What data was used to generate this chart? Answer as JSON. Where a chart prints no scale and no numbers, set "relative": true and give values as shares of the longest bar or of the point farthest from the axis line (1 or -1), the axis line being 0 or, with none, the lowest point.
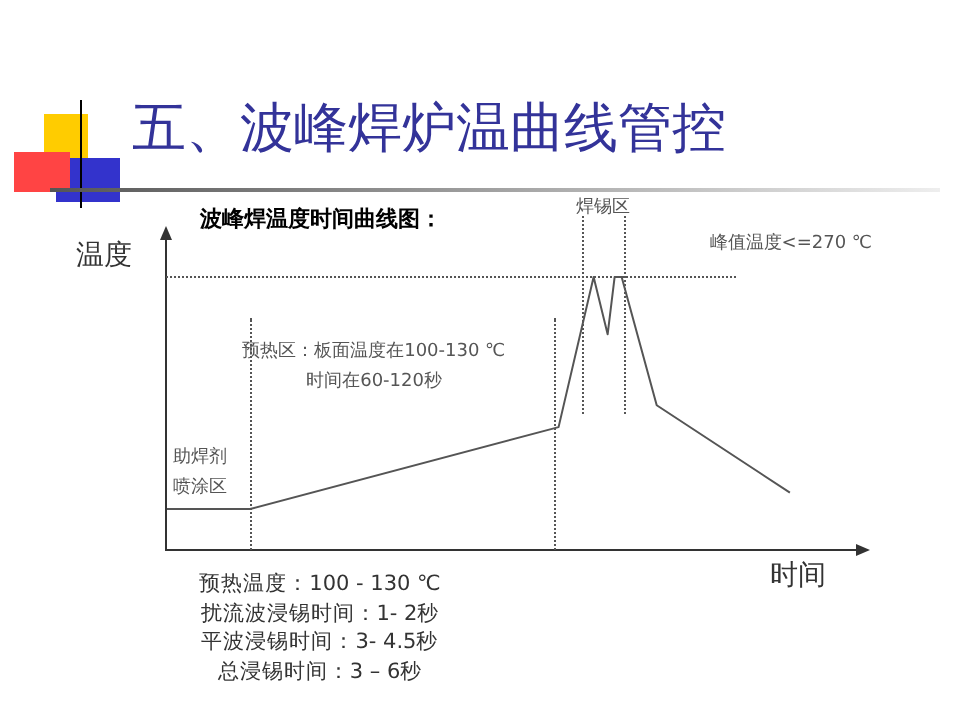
{
  "chart_data": {
    "type": "line",
    "title": "五、波峰焊炉温曲线管控",
    "subtitle": "波峰焊温度时间曲线图：",
    "xlabel": "时间",
    "ylabel": "温度",
    "relative": true,
    "tick_labels": false,
    "categories": [
      null,
      null,
      null,
      null,
      null,
      null,
      null,
      null,
      null,
      null,
      null,
      null,
      null,
      null,
      null,
      null,
      null,
      null,
      null,
      null,
      null,
      null,
      null,
      null,
      null,
      null,
      null,
      null,
      null,
      null,
      null,
      null,
      null,
      null,
      null,
      null,
      null,
      null,
      null,
      null,
      null,
      null,
      null,
      null,
      null,
      null,
      null,
      null,
      null,
      null,
      null,
      null,
      null,
      null,
      null,
      null,
      null,
      null,
      null,
      null,
      null,
      null,
      null,
      null,
      null,
      null,
      null,
      null,
      null,
      null,
      null,
      null,
      null,
      null,
      null,
      null,
      null,
      null,
      null,
      null,
      null,
      null,
      null,
      null,
      null,
      null,
      null,
      null,
      null,
      null,
      null,
      null,
      null,
      null,
      null,
      null,
      null,
      null,
      null,
      null
    ],
    "series": [
      {
        "color": "#555555",
        "values": [
          0.15,
          null,
          null,
          null,
          null,
          null,
          null,
          null,
          null,
          null,
          null,
          null,
          0.15,
          null,
          null,
          null,
          null,
          null,
          null,
          null,
          null,
          null,
          null,
          null,
          null,
          null,
          null,
          null,
          null,
          null,
          null,
          null,
          null,
          null,
          null,
          null,
          null,
          null,
          null,
          null,
          null,
          null,
          null,
          null,
          null,
          null,
          null,
          null,
          null,
          null,
          null,
          null,
          null,
          null,
          null,
          null,
          0.45,
          null,
          null,
          null,
          null,
          1,
          null,
          0.79,
          1,
          1,
          null,
          null,
          null,
          null,
          0.53,
          null,
          null,
          null,
          null,
          null,
          null,
          null,
          null,
          null,
          null,
          null,
          null,
          null,
          null,
          null,
          null,
          null,
          null,
          0.21,
          null,
          null,
          null,
          null,
          null,
          null,
          null,
          null,
          null,
          null
        ]
      }
    ],
    "annotations": [
      "助焊剂",
      "喷涂区",
      "预热区：板面温度在100-130 ℃",
      "时间在60-120秒",
      "焊锡区",
      "峰值温度<=270 ℃",
      "预热温度：100 - 130 ℃",
      "扰流波浸锡时间：1- 2秒",
      "平波浸锡时间：3- 4.5秒",
      "总浸锡时间：3 – 6秒"
    ]
  }
}
